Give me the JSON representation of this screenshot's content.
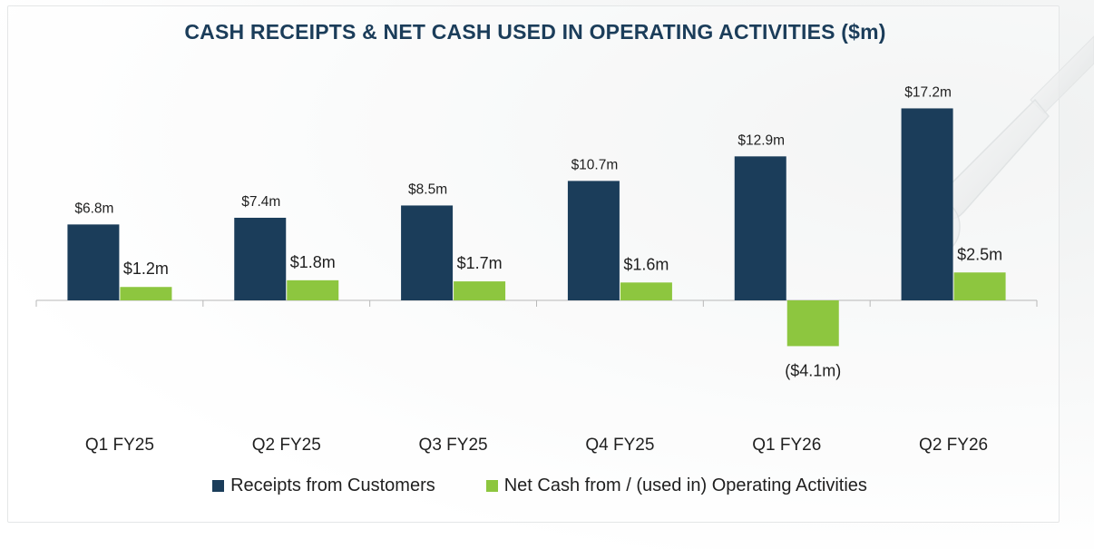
{
  "chart_data": {
    "type": "bar",
    "title": "CASH RECEIPTS & NET CASH USED IN OPERATING ACTIVITIES ($m)",
    "categories": [
      "Q1 FY25",
      "Q2 FY25",
      "Q3 FY25",
      "Q4 FY25",
      "Q1 FY26",
      "Q2 FY26"
    ],
    "series": [
      {
        "name": "Receipts from Customers",
        "color": "#1b3d5a",
        "values": [
          6.8,
          7.4,
          8.5,
          10.7,
          12.9,
          17.2
        ],
        "labels": [
          "$6.8m",
          "$7.4m",
          "$8.5m",
          "$10.7m",
          "$12.9m",
          "$17.2m"
        ]
      },
      {
        "name": "Net Cash from / (used in) Operating Activities",
        "color": "#8dc63f",
        "values": [
          1.2,
          1.8,
          1.7,
          1.6,
          -4.1,
          2.5
        ],
        "labels": [
          "$1.2m",
          "$1.8m",
          "$1.7m",
          "$1.6m",
          "($4.1m)",
          "$2.5m"
        ]
      }
    ],
    "xlabel": "",
    "ylabel": "",
    "ylim": [
      -4.1,
      17.2
    ],
    "grid": false,
    "legend_position": "bottom"
  }
}
